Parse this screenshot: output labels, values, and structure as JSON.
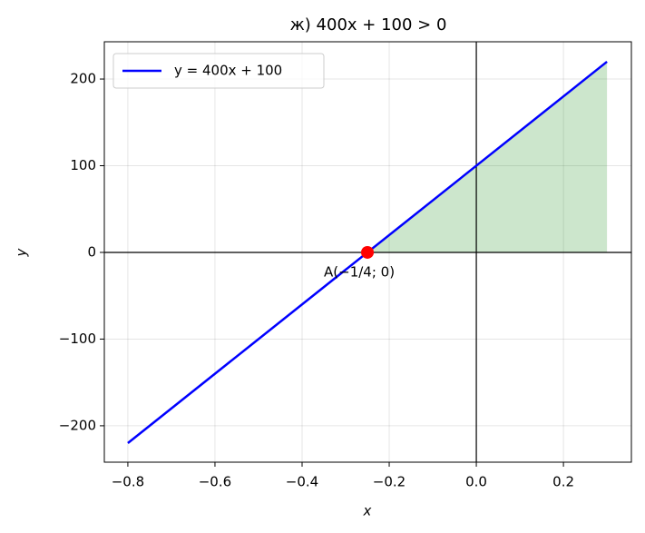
{
  "chart_data": {
    "type": "line",
    "title": "ж) 400x + 100 > 0",
    "x_label": "x",
    "y_label": "y",
    "series": [
      {
        "name": "y = 400x + 100",
        "color": "#0000ff",
        "x": [
          -0.8,
          0.3
        ],
        "values": [
          -220,
          220
        ]
      }
    ],
    "fill": {
      "color": "#008000",
      "opacity": 0.2,
      "x": [
        -0.25,
        0.3
      ],
      "values": [
        0,
        220
      ]
    },
    "point": {
      "label": "A(−1/4; 0)",
      "color": "#ff0000",
      "x": -0.25,
      "y": 0
    },
    "xlim": [
      -0.854,
      0.356
    ],
    "ylim": [
      -242,
      243
    ],
    "xticks": [
      {
        "value": -0.8,
        "label": "−0.8"
      },
      {
        "value": -0.6,
        "label": "−0.6"
      },
      {
        "value": -0.4,
        "label": "−0.4"
      },
      {
        "value": -0.2,
        "label": "−0.2"
      },
      {
        "value": 0,
        "label": "0.0"
      },
      {
        "value": 0.2,
        "label": "0.2"
      }
    ],
    "yticks": [
      {
        "value": -200,
        "label": "−200"
      },
      {
        "value": -100,
        "label": "−100"
      },
      0,
      100,
      200
    ],
    "grid": true,
    "legend": "upper left"
  }
}
